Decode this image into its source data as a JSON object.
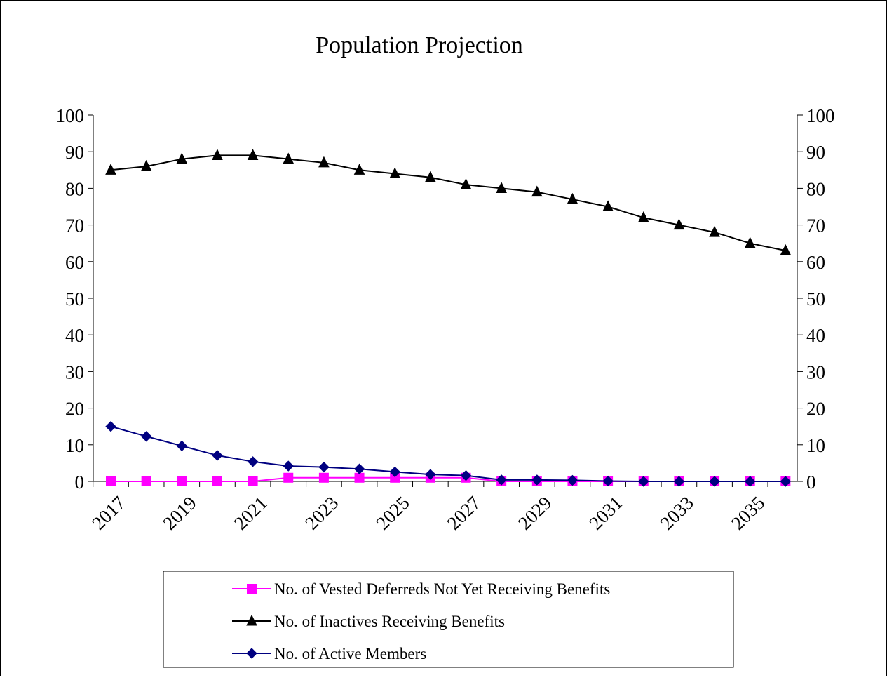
{
  "chart_data": {
    "type": "line",
    "title": "Population Projection",
    "xlabel": "",
    "ylabel": "",
    "x": [
      2017,
      2018,
      2019,
      2020,
      2021,
      2022,
      2023,
      2024,
      2025,
      2026,
      2027,
      2028,
      2029,
      2030,
      2031,
      2032,
      2033,
      2034,
      2035,
      2036
    ],
    "x_tick_labels": [
      "2017",
      "2019",
      "2021",
      "2023",
      "2025",
      "2027",
      "2029",
      "2031",
      "2033",
      "2035"
    ],
    "y_tick_labels": [
      "0",
      "10",
      "20",
      "30",
      "40",
      "50",
      "60",
      "70",
      "80",
      "90",
      "100"
    ],
    "ylim": [
      0,
      100
    ],
    "secondary_y_axis": true,
    "grid": false,
    "legend_placement": "bottom",
    "series": [
      {
        "name": "No. of Vested Deferreds Not Yet Receiving Benefits",
        "marker": "square",
        "color": "#ff00ff",
        "values": [
          0,
          0,
          0,
          0,
          0,
          1,
          1,
          1,
          1,
          1,
          1,
          0,
          0,
          0,
          0,
          0,
          0,
          0,
          0,
          0
        ]
      },
      {
        "name": "No. of  Inactives Receiving Benefits",
        "marker": "triangle",
        "color": "#000000",
        "values": [
          85,
          86,
          88,
          89,
          89,
          88,
          87,
          85,
          84,
          83,
          81,
          80,
          79,
          77,
          75,
          72,
          70,
          68,
          65,
          63
        ]
      },
      {
        "name": "No. of  Active Members",
        "marker": "diamond",
        "color": "#000080",
        "values": [
          15,
          12.3,
          9.7,
          7.1,
          5.4,
          4.2,
          3.9,
          3.4,
          2.6,
          1.9,
          1.6,
          0.4,
          0.4,
          0.3,
          0.1,
          0,
          0,
          0,
          0,
          0
        ]
      }
    ]
  }
}
